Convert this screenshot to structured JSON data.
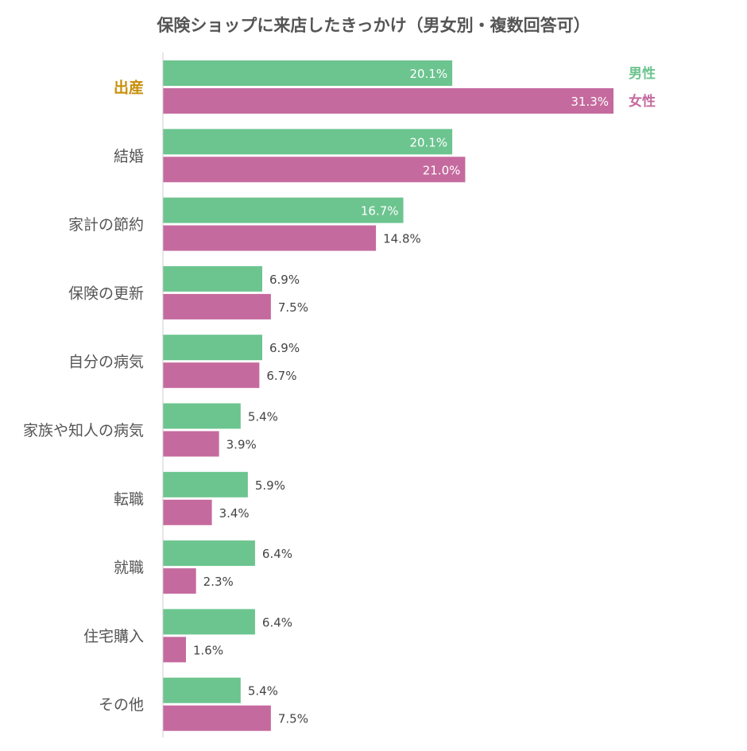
{
  "chart_data": {
    "type": "bar",
    "orientation": "horizontal",
    "title": "保険ショップに来店したきっかけ（男女別・複数回答可）",
    "categories": [
      "出産",
      "結婚",
      "家計の節約",
      "保険の更新",
      "自分の病気",
      "家族や知人の病気",
      "転職",
      "就職",
      "住宅購入",
      "その他"
    ],
    "highlight_category": "出産",
    "highlight_color": "#c9900c",
    "series": [
      {
        "name": "男性",
        "color": "#6cc48f",
        "values": [
          20.1,
          20.1,
          16.7,
          6.9,
          6.9,
          5.4,
          5.9,
          6.4,
          6.4,
          5.4
        ],
        "labels": [
          "20.1%",
          "20.1%",
          "16.7%",
          "6.9%",
          "6.9%",
          "5.4%",
          "5.9%",
          "6.4%",
          "6.4%",
          "5.4%"
        ]
      },
      {
        "name": "女性",
        "color": "#c56a9e",
        "values": [
          31.3,
          21.0,
          14.8,
          7.5,
          6.7,
          3.9,
          3.4,
          2.3,
          1.6,
          7.5
        ],
        "labels": [
          "31.3%",
          "21.0%",
          "14.8%",
          "7.5%",
          "6.7%",
          "3.9%",
          "3.4%",
          "2.3%",
          "1.6%",
          "7.5%"
        ]
      }
    ],
    "xlim": [
      0,
      31.3
    ],
    "unit": "%",
    "grid": false,
    "legend": "top-right",
    "axis_color": "#cccccc"
  }
}
